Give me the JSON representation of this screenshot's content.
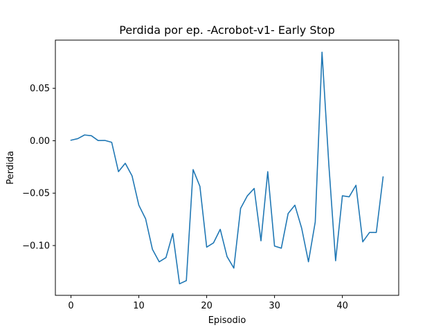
{
  "chart_data": {
    "type": "line",
    "title": "Perdida por ep. -Acrobot-v1- Early Stop",
    "xlabel": "Episodio",
    "ylabel": "Perdida",
    "xlim": [
      -2.3,
      48.3
    ],
    "ylim": [
      -0.1475,
      0.096
    ],
    "xticks": [
      0,
      10,
      20,
      30,
      40
    ],
    "yticks": [
      -0.1,
      -0.05,
      0.0,
      0.05
    ],
    "ytick_labels": [
      "−0.10",
      "−0.05",
      "0.00",
      "0.05"
    ],
    "grid": false,
    "line_color": "#1f77b4",
    "series": [
      {
        "x": [
          0,
          1,
          2,
          3,
          4,
          5,
          6,
          7,
          8,
          9,
          10,
          11,
          12,
          13,
          14,
          15,
          16,
          17,
          18,
          19,
          20,
          21,
          22,
          23,
          24,
          25,
          26,
          27,
          28,
          29,
          30,
          31,
          32,
          33,
          34,
          35,
          36,
          37,
          38,
          39,
          40,
          41,
          42,
          43,
          44,
          45,
          46
        ],
        "values": [
          0.0005,
          0.002,
          0.0055,
          0.0048,
          0.0002,
          0.0003,
          -0.0015,
          -0.0295,
          -0.0215,
          -0.0335,
          -0.0615,
          -0.0745,
          -0.1035,
          -0.1155,
          -0.1115,
          -0.0885,
          -0.1365,
          -0.1335,
          -0.0275,
          -0.0435,
          -0.1015,
          -0.0975,
          -0.0845,
          -0.1105,
          -0.1215,
          -0.0645,
          -0.0525,
          -0.0455,
          -0.0955,
          -0.0295,
          -0.1005,
          -0.1025,
          -0.0695,
          -0.0615,
          -0.0835,
          -0.1155,
          -0.0775,
          0.0845,
          -0.0225,
          -0.1145,
          -0.0525,
          -0.0535,
          -0.0425,
          -0.0965,
          -0.0875,
          -0.0875,
          -0.0345
        ]
      }
    ]
  }
}
